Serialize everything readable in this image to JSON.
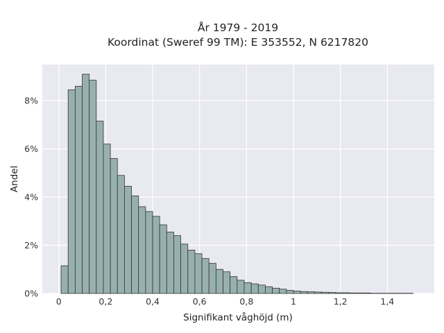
{
  "chart_data": {
    "type": "bar",
    "title_line1": "År 1979 - 2019",
    "title_line2": "Koordinat (Sweref 99 TM): E 353552, N 6217820",
    "xlabel": "Signifikant våghöjd (m)",
    "ylabel": "Andel",
    "xlim": [
      -0.07,
      1.6
    ],
    "ylim": [
      0,
      9.5
    ],
    "x_ticks": [
      0,
      0.2,
      0.4,
      0.6,
      0.8,
      1.0,
      1.2,
      1.4
    ],
    "x_tick_labels": [
      "0",
      "0,2",
      "0,4",
      "0,6",
      "0,8",
      "1",
      "1,2",
      "1,4"
    ],
    "y_ticks": [
      0,
      2,
      4,
      6,
      8
    ],
    "y_tick_labels": [
      "0%",
      "2%",
      "4%",
      "6%",
      "8%"
    ],
    "grid": true,
    "background_color": "#e9e9f2",
    "bar_color": "#97b0ae",
    "bar_edge_color": "#333333",
    "bin_width": 0.03,
    "bin_start": 0.01,
    "values": [
      1.15,
      8.45,
      8.6,
      9.1,
      8.85,
      7.15,
      6.2,
      5.6,
      4.9,
      4.45,
      4.05,
      3.6,
      3.4,
      3.2,
      2.85,
      2.55,
      2.4,
      2.05,
      1.8,
      1.65,
      1.45,
      1.25,
      1.0,
      0.9,
      0.7,
      0.55,
      0.45,
      0.4,
      0.35,
      0.28,
      0.22,
      0.18,
      0.13,
      0.1,
      0.08,
      0.07,
      0.06,
      0.05,
      0.04,
      0.03,
      0.03,
      0.02,
      0.02,
      0.02,
      0.01,
      0.01,
      0.01,
      0.01,
      0.01,
      0.01
    ]
  }
}
